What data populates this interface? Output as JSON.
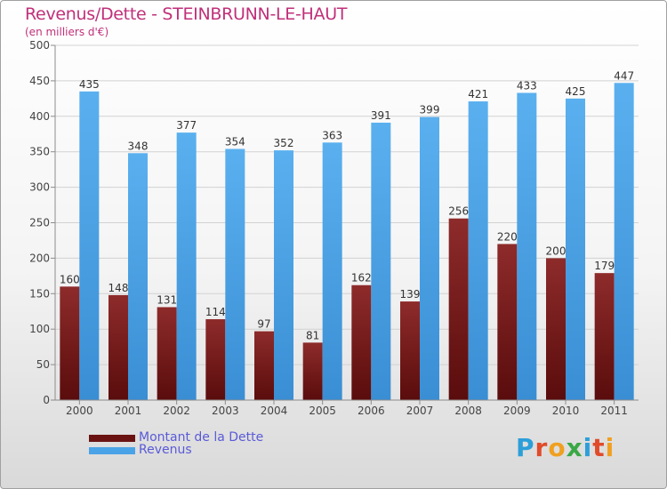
{
  "header": {
    "title": "Revenus/Dette - STEINBRUNN-LE-HAUT",
    "subtitle": "(en milliers d'€)"
  },
  "colors": {
    "title": "#c0307a",
    "debt": "#7a1e1e",
    "revenue": "#4aa3e6",
    "legend_text": "#5a5ad8"
  },
  "legend": {
    "items": [
      {
        "label": "Montant de la Dette",
        "color": "#7a1e1e"
      },
      {
        "label": "Revenus",
        "color": "#4aa3e6"
      }
    ]
  },
  "logo": {
    "text": "Proxiti"
  },
  "chart_data": {
    "type": "bar",
    "title": "Revenus/Dette - STEINBRUNN-LE-HAUT",
    "subtitle": "(en milliers d'€)",
    "categories": [
      "2000",
      "2001",
      "2002",
      "2003",
      "2004",
      "2005",
      "2006",
      "2007",
      "2008",
      "2009",
      "2010",
      "2011"
    ],
    "series": [
      {
        "name": "Montant de la Dette",
        "values": [
          160,
          148,
          131,
          114,
          97,
          81,
          162,
          139,
          256,
          220,
          200,
          179
        ]
      },
      {
        "name": "Revenus",
        "values": [
          435,
          348,
          377,
          354,
          352,
          363,
          391,
          399,
          421,
          433,
          425,
          447
        ]
      }
    ],
    "ylim": [
      0,
      500
    ],
    "yticks": [
      0,
      50,
      100,
      150,
      200,
      250,
      300,
      350,
      400,
      450,
      500
    ],
    "grid": true,
    "legend_position": "bottom-left"
  }
}
